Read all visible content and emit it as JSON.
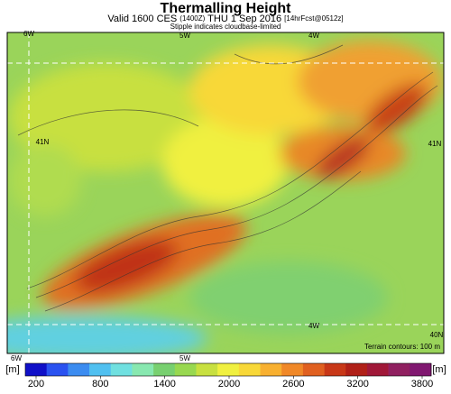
{
  "header": {
    "title": "Thermalling Height",
    "subtitle": [
      "Valid 1600 CES",
      "(1400Z)",
      "THU 1 Sep 2016",
      "[14hrFcst@0512z]"
    ],
    "note": "Stipple indicates cloudbase-limited"
  },
  "map": {
    "labels": [
      "6W",
      "5W",
      "4W",
      "41N",
      "41N",
      "4W",
      "40N",
      "6W",
      "5W"
    ],
    "contour_note": "Terrain contours: 100 m"
  },
  "colorbar": {
    "unit": "[m]",
    "ticks": [
      200,
      800,
      1400,
      2000,
      2600,
      3200,
      3800
    ],
    "colors": [
      "#1010c8",
      "#2a52f0",
      "#3c8cf0",
      "#50c0f0",
      "#70e0e0",
      "#88e8b0",
      "#78d070",
      "#98d850",
      "#c8e040",
      "#f0f040",
      "#f8d838",
      "#f8b030",
      "#f08828",
      "#e06020",
      "#c83818",
      "#b02018",
      "#a01838",
      "#902060",
      "#801870"
    ]
  }
}
